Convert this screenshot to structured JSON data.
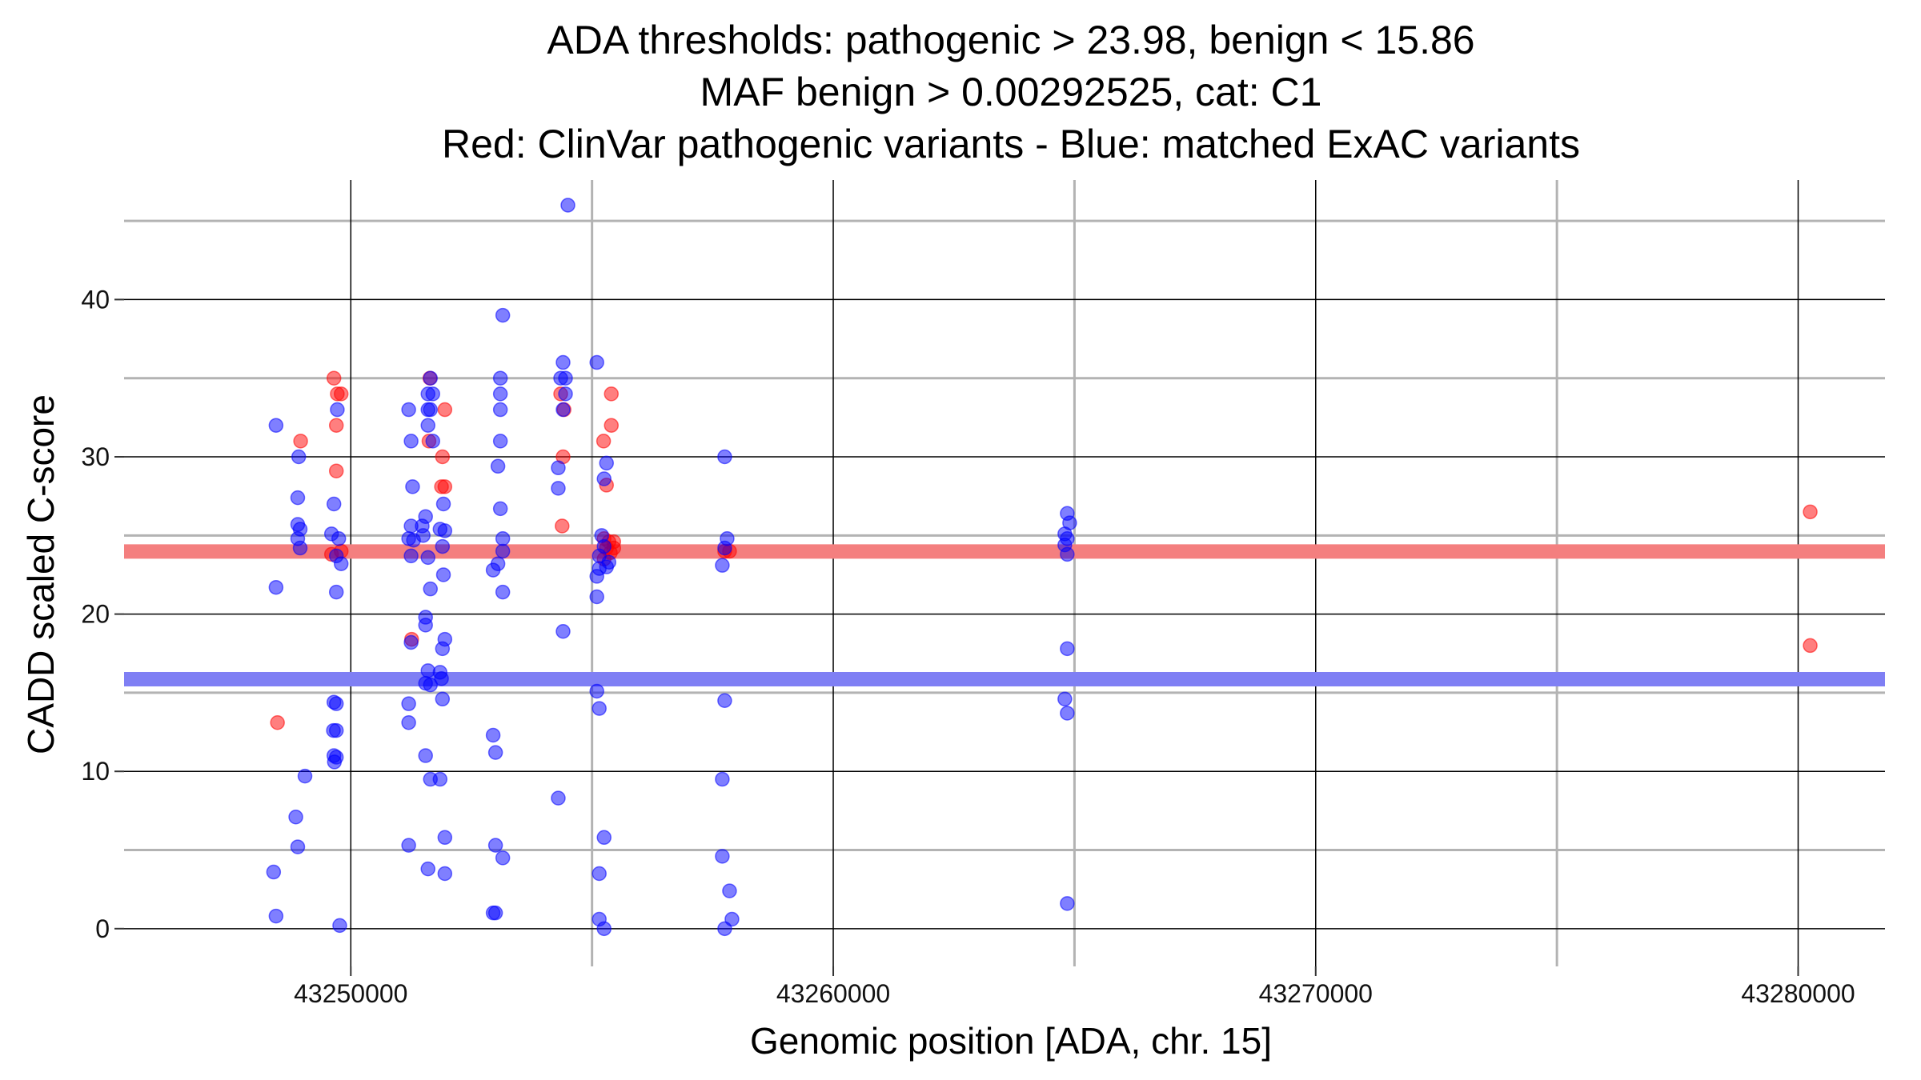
{
  "chart_data": {
    "type": "scatter",
    "title_lines": [
      "ADA thresholds: pathogenic > 23.98, benign < 15.86",
      "MAF benign > 0.00292525, cat: C1",
      "Red: ClinVar pathogenic variants - Blue: matched ExAC variants"
    ],
    "xlabel": "Genomic position [ADA, chr. 15]",
    "ylabel": "CADD scaled C-score",
    "xlim": [
      43245300,
      43281800
    ],
    "ylim": [
      -2.4,
      47.6
    ],
    "x_ticks": [
      43250000,
      43260000,
      43270000,
      43280000
    ],
    "x_tick_labels": [
      "43250000",
      "43260000",
      "43270000",
      "43280000"
    ],
    "y_ticks": [
      0,
      10,
      20,
      30,
      40
    ],
    "y_tick_labels": [
      "0",
      "10",
      "20",
      "30",
      "40"
    ],
    "x_minor_grid": [
      43255000,
      43265000,
      43275000
    ],
    "y_minor_grid": [
      5,
      15,
      25,
      35,
      45
    ],
    "thresholds": [
      {
        "name": "pathogenic",
        "value": 23.98,
        "color": "#f47f7f"
      },
      {
        "name": "benign",
        "value": 15.86,
        "color": "#7f7ff4"
      }
    ],
    "series": [
      {
        "name": "ClinVar pathogenic variants",
        "color": "#ff0000",
        "points": [
          [
            43248480,
            13.1
          ],
          [
            43248960,
            31.0
          ],
          [
            43249650,
            35.0
          ],
          [
            43249720,
            34.0
          ],
          [
            43249800,
            34.0
          ],
          [
            43249700,
            32.0
          ],
          [
            43249700,
            29.1
          ],
          [
            43249600,
            23.8
          ],
          [
            43249800,
            24.0
          ],
          [
            43251260,
            18.4
          ],
          [
            43251640,
            35.0
          ],
          [
            43251620,
            31.0
          ],
          [
            43251950,
            33.0
          ],
          [
            43251900,
            30.0
          ],
          [
            43251880,
            28.1
          ],
          [
            43251950,
            28.1
          ],
          [
            43254350,
            34.0
          ],
          [
            43254420,
            33.0
          ],
          [
            43254400,
            30.0
          ],
          [
            43254380,
            25.6
          ],
          [
            43255240,
            31.0
          ],
          [
            43255300,
            28.2
          ],
          [
            43255400,
            34.0
          ],
          [
            43255400,
            32.0
          ],
          [
            43255250,
            24.8
          ],
          [
            43255350,
            24.6
          ],
          [
            43255450,
            24.6
          ],
          [
            43255300,
            24.2
          ],
          [
            43255380,
            23.9
          ],
          [
            43255250,
            23.5
          ],
          [
            43255450,
            24.2
          ],
          [
            43257850,
            24.0
          ],
          [
            43257750,
            24.0
          ],
          [
            43280250,
            26.5
          ],
          [
            43280250,
            18.0
          ]
        ]
      },
      {
        "name": "matched ExAC variants",
        "color": "#0000ff",
        "points": [
          [
            43248450,
            32.0
          ],
          [
            43248450,
            21.7
          ],
          [
            43248400,
            3.6
          ],
          [
            43248450,
            0.8
          ],
          [
            43248920,
            30.0
          ],
          [
            43248900,
            27.4
          ],
          [
            43248900,
            25.7
          ],
          [
            43248950,
            25.4
          ],
          [
            43248900,
            24.8
          ],
          [
            43248950,
            24.2
          ],
          [
            43249050,
            9.7
          ],
          [
            43248860,
            7.1
          ],
          [
            43248900,
            5.2
          ],
          [
            43249720,
            33.0
          ],
          [
            43249650,
            27.0
          ],
          [
            43249600,
            25.1
          ],
          [
            43249750,
            24.8
          ],
          [
            43249700,
            23.7
          ],
          [
            43249800,
            23.2
          ],
          [
            43249700,
            21.4
          ],
          [
            43249650,
            14.4
          ],
          [
            43249700,
            14.3
          ],
          [
            43249640,
            12.6
          ],
          [
            43249700,
            12.6
          ],
          [
            43249650,
            11.0
          ],
          [
            43249700,
            10.9
          ],
          [
            43249660,
            10.6
          ],
          [
            43249770,
            0.2
          ],
          [
            43251200,
            33.0
          ],
          [
            43251250,
            31.0
          ],
          [
            43251650,
            35.0
          ],
          [
            43251600,
            34.0
          ],
          [
            43251700,
            34.0
          ],
          [
            43251600,
            33.0
          ],
          [
            43251650,
            33.0
          ],
          [
            43251600,
            32.0
          ],
          [
            43251700,
            31.0
          ],
          [
            43251280,
            28.1
          ],
          [
            43251920,
            27.0
          ],
          [
            43251550,
            26.2
          ],
          [
            43251250,
            25.6
          ],
          [
            43251480,
            25.6
          ],
          [
            43251850,
            25.4
          ],
          [
            43251950,
            25.3
          ],
          [
            43251500,
            25.0
          ],
          [
            43251200,
            24.8
          ],
          [
            43251300,
            24.7
          ],
          [
            43251900,
            24.3
          ],
          [
            43251250,
            23.7
          ],
          [
            43251600,
            23.6
          ],
          [
            43251920,
            22.5
          ],
          [
            43251650,
            21.6
          ],
          [
            43251550,
            19.8
          ],
          [
            43251550,
            19.3
          ],
          [
            43251950,
            18.4
          ],
          [
            43251250,
            18.2
          ],
          [
            43251900,
            17.8
          ],
          [
            43251600,
            16.4
          ],
          [
            43251850,
            16.3
          ],
          [
            43251880,
            15.9
          ],
          [
            43251550,
            15.6
          ],
          [
            43251650,
            15.5
          ],
          [
            43251900,
            14.6
          ],
          [
            43251200,
            14.3
          ],
          [
            43251200,
            13.1
          ],
          [
            43251550,
            11.0
          ],
          [
            43251650,
            9.5
          ],
          [
            43251850,
            9.5
          ],
          [
            43251950,
            5.8
          ],
          [
            43251200,
            5.3
          ],
          [
            43251600,
            3.8
          ],
          [
            43251950,
            3.5
          ],
          [
            43253150,
            39.0
          ],
          [
            43253100,
            35.0
          ],
          [
            43253100,
            34.0
          ],
          [
            43253100,
            33.0
          ],
          [
            43253100,
            31.0
          ],
          [
            43253050,
            29.4
          ],
          [
            43253100,
            26.7
          ],
          [
            43253150,
            24.8
          ],
          [
            43253150,
            24.0
          ],
          [
            43253050,
            23.2
          ],
          [
            43252950,
            22.8
          ],
          [
            43253150,
            21.4
          ],
          [
            43252950,
            12.3
          ],
          [
            43253000,
            11.2
          ],
          [
            43253000,
            5.3
          ],
          [
            43253150,
            4.5
          ],
          [
            43252950,
            1.0
          ],
          [
            43253000,
            1.0
          ],
          [
            43254500,
            46.0
          ],
          [
            43254400,
            36.0
          ],
          [
            43254350,
            35.0
          ],
          [
            43254450,
            35.0
          ],
          [
            43254450,
            34.0
          ],
          [
            43254400,
            33.0
          ],
          [
            43254300,
            29.3
          ],
          [
            43254300,
            28.0
          ],
          [
            43254400,
            18.9
          ],
          [
            43254300,
            8.3
          ],
          [
            43255100,
            36.0
          ],
          [
            43255300,
            29.6
          ],
          [
            43255250,
            28.6
          ],
          [
            43255200,
            25.0
          ],
          [
            43255250,
            24.3
          ],
          [
            43255150,
            23.7
          ],
          [
            43255300,
            23.0
          ],
          [
            43255350,
            23.3
          ],
          [
            43255150,
            22.9
          ],
          [
            43255100,
            22.4
          ],
          [
            43255100,
            21.1
          ],
          [
            43255100,
            15.1
          ],
          [
            43255150,
            14.0
          ],
          [
            43255250,
            5.8
          ],
          [
            43255150,
            3.5
          ],
          [
            43255150,
            0.6
          ],
          [
            43255250,
            0.0
          ],
          [
            43257750,
            30.0
          ],
          [
            43257800,
            24.8
          ],
          [
            43257750,
            24.2
          ],
          [
            43257700,
            23.1
          ],
          [
            43257750,
            14.5
          ],
          [
            43257700,
            9.5
          ],
          [
            43257700,
            4.6
          ],
          [
            43257850,
            2.4
          ],
          [
            43257900,
            0.6
          ],
          [
            43257750,
            0.0
          ],
          [
            43264850,
            26.4
          ],
          [
            43264900,
            25.8
          ],
          [
            43264800,
            25.1
          ],
          [
            43264850,
            24.8
          ],
          [
            43264800,
            24.4
          ],
          [
            43264850,
            23.8
          ],
          [
            43264850,
            17.8
          ],
          [
            43264800,
            14.6
          ],
          [
            43264850,
            13.7
          ],
          [
            43264850,
            1.6
          ]
        ]
      }
    ]
  }
}
